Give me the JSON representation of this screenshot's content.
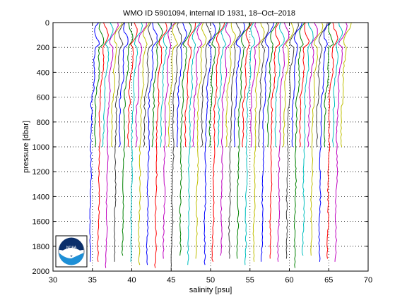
{
  "chart_data": {
    "type": "line",
    "title": "WMO ID 5901094, internal ID 1931, 18–Oct–2018",
    "xlabel": "salinity [psu]",
    "ylabel": "pressure [dbar]",
    "xlim": [
      30,
      70
    ],
    "ylim": [
      0,
      2000
    ],
    "y_reversed": true,
    "xticks": [
      30,
      35,
      40,
      45,
      50,
      55,
      60,
      65,
      70
    ],
    "yticks": [
      0,
      200,
      400,
      600,
      800,
      1000,
      1200,
      1400,
      1600,
      1800,
      2000
    ],
    "grid": true,
    "logo": "noaa-logo",
    "profiles": {
      "count": 62,
      "first_surface_salinity": 35.2,
      "surface_salinity_step": 0.52,
      "deep_profiles_every": 2,
      "shallow_max_pressure": 1000,
      "deep_max_pressure": 2000
    },
    "series_colors": [
      "#0000ff",
      "#008000",
      "#ff0000",
      "#00bfbf",
      "#bf00bf",
      "#bfbf00",
      "#404040"
    ]
  }
}
